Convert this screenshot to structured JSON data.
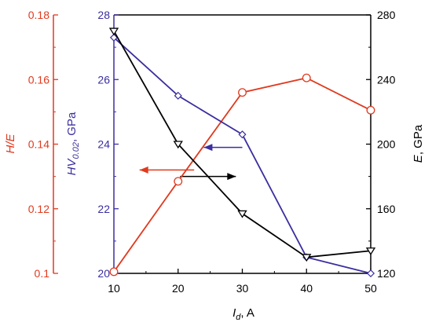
{
  "chart_data": {
    "type": "line",
    "x": [
      10,
      20,
      30,
      40,
      50
    ],
    "xlim": [
      10,
      50
    ],
    "x_ticks": [
      "10",
      "20",
      "30",
      "40",
      "50"
    ],
    "xlabel": {
      "main": "I",
      "sub": "d",
      "unit": ", A"
    },
    "axes": {
      "h_e": {
        "label": "H/E",
        "ylim": [
          0.1,
          0.18
        ],
        "ticks": [
          "0.1",
          "0.12",
          "0.14",
          "0.16",
          "0.18"
        ],
        "color": "#e03a1e"
      },
      "hv": {
        "label": {
          "main": "HV",
          "sub": "0.02",
          "unit": ", GPa"
        },
        "ylim": [
          20,
          28
        ],
        "ticks": [
          "20",
          "22",
          "24",
          "26",
          "28"
        ],
        "color": "#3a2ea0"
      },
      "e": {
        "label": {
          "main": "E",
          "unit": ", GPa"
        },
        "ylim": [
          120,
          280
        ],
        "ticks": [
          "120",
          "160",
          "200",
          "240",
          "280"
        ],
        "color": "#000000"
      }
    },
    "series": [
      {
        "axis": "h_e",
        "marker": "circle",
        "color": "#e03a1e",
        "values": [
          0.1005,
          0.1285,
          0.156,
          0.1605,
          0.1505
        ]
      },
      {
        "axis": "hv",
        "marker": "diamond",
        "color": "#3a2ea0",
        "values": [
          27.3,
          25.5,
          24.3,
          20.5,
          20.0
        ]
      },
      {
        "axis": "e",
        "marker": "triangle-down",
        "color": "#000000",
        "values": [
          270,
          200,
          157,
          130,
          134
        ]
      }
    ],
    "annotations": [
      {
        "type": "arrow",
        "direction": "left",
        "color": "#3a2ea0",
        "x": [
          30,
          24
        ],
        "y_axis": "hv",
        "y": 23.9
      },
      {
        "type": "arrow",
        "direction": "left",
        "color": "#e03a1e",
        "x": [
          22.5,
          14
        ],
        "y_axis": "hv",
        "y": 23.2
      },
      {
        "type": "arrow",
        "direction": "right",
        "color": "#000000",
        "x": [
          20.3,
          29
        ],
        "y_axis": "hv",
        "y": 23.0
      }
    ]
  }
}
